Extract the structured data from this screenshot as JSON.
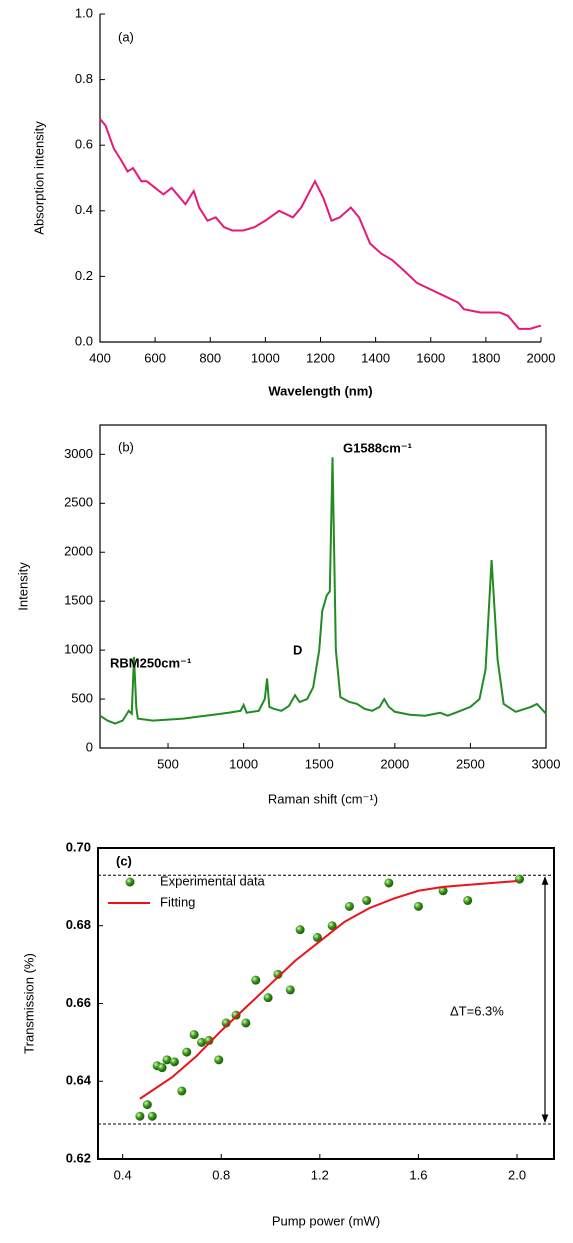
{
  "chart_data": [
    {
      "type": "line",
      "annotations": [
        "(a)"
      ],
      "x_label": "Wavelength (nm)",
      "y_label": "Absorption intensity",
      "color": "#e6197a",
      "x": [
        400,
        420,
        450,
        480,
        500,
        520,
        550,
        570,
        600,
        630,
        660,
        690,
        710,
        740,
        760,
        790,
        820,
        850,
        880,
        920,
        960,
        1000,
        1050,
        1100,
        1130,
        1180,
        1210,
        1240,
        1270,
        1310,
        1340,
        1380,
        1420,
        1460,
        1500,
        1550,
        1600,
        1650,
        1700,
        1720,
        1780,
        1850,
        1880,
        1920,
        1960,
        2000
      ],
      "values": [
        0.68,
        0.66,
        0.59,
        0.55,
        0.52,
        0.53,
        0.49,
        0.49,
        0.47,
        0.45,
        0.47,
        0.44,
        0.42,
        0.46,
        0.41,
        0.37,
        0.38,
        0.35,
        0.34,
        0.34,
        0.35,
        0.37,
        0.4,
        0.38,
        0.41,
        0.49,
        0.44,
        0.37,
        0.38,
        0.41,
        0.38,
        0.3,
        0.27,
        0.25,
        0.22,
        0.18,
        0.16,
        0.14,
        0.12,
        0.1,
        0.09,
        0.09,
        0.08,
        0.04,
        0.04,
        0.05
      ],
      "xlim": [
        400,
        2000
      ],
      "xticks": [
        400,
        600,
        800,
        1000,
        1200,
        1400,
        1600,
        1800,
        2000
      ],
      "ylim": [
        0,
        1
      ],
      "yticks": [
        {
          "value": 0,
          "label": "0.0"
        },
        0.2,
        0.4,
        0.6,
        0.8,
        {
          "value": 1,
          "label": "1.0"
        }
      ]
    },
    {
      "type": "line",
      "annotations": [
        "(b)",
        "RBM250cm⁻¹",
        "D",
        "G1588cm⁻¹"
      ],
      "x_label": "Raman shift (cm⁻¹)",
      "y_label": "Intensity",
      "color": "#228b22",
      "x": [
        50,
        100,
        150,
        200,
        240,
        260,
        275,
        290,
        300,
        400,
        500,
        600,
        700,
        800,
        900,
        980,
        1000,
        1020,
        1100,
        1140,
        1155,
        1170,
        1200,
        1250,
        1300,
        1340,
        1370,
        1420,
        1460,
        1500,
        1520,
        1550,
        1570,
        1588,
        1610,
        1640,
        1700,
        1750,
        1800,
        1850,
        1900,
        1930,
        1960,
        2000,
        2100,
        2200,
        2300,
        2350,
        2400,
        2500,
        2560,
        2600,
        2640,
        2680,
        2720,
        2800,
        2900,
        2940,
        3000
      ],
      "values": [
        330,
        280,
        250,
        280,
        380,
        350,
        930,
        420,
        300,
        280,
        290,
        300,
        320,
        340,
        360,
        380,
        440,
        360,
        380,
        500,
        710,
        420,
        400,
        380,
        430,
        540,
        470,
        500,
        620,
        1000,
        1400,
        1560,
        1600,
        2970,
        1000,
        520,
        470,
        450,
        400,
        380,
        420,
        500,
        420,
        370,
        340,
        330,
        360,
        330,
        360,
        420,
        500,
        800,
        1920,
        900,
        450,
        370,
        420,
        450,
        350
      ],
      "xlim": [
        50,
        3000
      ],
      "xticks": [
        500,
        1000,
        1500,
        2000,
        2500,
        3000
      ],
      "ylim": [
        0,
        3300
      ],
      "yticks": [
        0,
        500,
        1000,
        1500,
        2000,
        2500,
        3000
      ]
    },
    {
      "type": "scatter",
      "annotations": [
        "(c)",
        "ΔT=6.3%"
      ],
      "x_label": "Pump power (mW)",
      "y_label": "Transmission (%)",
      "legend": "upper left",
      "reference_lines": [
        0.693,
        0.629
      ],
      "series": [
        {
          "name": "Experimental data",
          "type": "scatter",
          "color": "#3a9a1a",
          "x": [
            0.47,
            0.5,
            0.52,
            0.54,
            0.56,
            0.58,
            0.61,
            0.64,
            0.66,
            0.69,
            0.72,
            0.75,
            0.79,
            0.82,
            0.86,
            0.9,
            0.94,
            0.99,
            1.03,
            1.08,
            1.12,
            1.19,
            1.25,
            1.32,
            1.39,
            1.48,
            1.6,
            1.7,
            1.8,
            2.01
          ],
          "values": [
            0.631,
            0.634,
            0.631,
            0.644,
            0.6435,
            0.6455,
            0.645,
            0.6375,
            0.6475,
            0.652,
            0.65,
            0.6505,
            0.6455,
            0.655,
            0.657,
            0.655,
            0.666,
            0.6615,
            0.6675,
            0.6635,
            0.679,
            0.677,
            0.68,
            0.685,
            0.6865,
            0.691,
            0.685,
            0.689,
            0.6865,
            0.692
          ]
        },
        {
          "name": "Fitting",
          "type": "line",
          "color": "#e8141b",
          "x": [
            0.47,
            0.6,
            0.7,
            0.8,
            0.9,
            1.0,
            1.1,
            1.2,
            1.3,
            1.4,
            1.5,
            1.6,
            1.7,
            1.8,
            2.0
          ],
          "values": [
            0.6355,
            0.641,
            0.6465,
            0.653,
            0.659,
            0.665,
            0.671,
            0.676,
            0.681,
            0.6845,
            0.687,
            0.689,
            0.69,
            0.6905,
            0.6915
          ]
        }
      ],
      "xlim": [
        0.3,
        2.15
      ],
      "xticks": [
        0.4,
        0.8,
        1.2,
        1.6,
        {
          "value": 2,
          "label": "2.0"
        }
      ],
      "ylim": [
        0.62,
        0.7
      ],
      "yticks": [
        0.62,
        0.64,
        0.66,
        0.68,
        {
          "value": 0.7,
          "label": "0.70"
        }
      ]
    }
  ]
}
